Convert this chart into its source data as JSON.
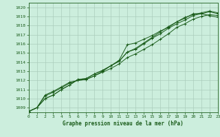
{
  "title": "Graphe pression niveau de la mer (hPa)",
  "bg_color": "#cceedd",
  "grid_color": "#aaccbb",
  "line_color": "#1a5c1a",
  "marker": "+",
  "xmin": 0,
  "xmax": 23,
  "ymin": 1008.5,
  "ymax": 1020.5,
  "yticks": [
    1009,
    1010,
    1011,
    1012,
    1013,
    1014,
    1015,
    1016,
    1017,
    1018,
    1019,
    1020
  ],
  "xticks": [
    0,
    1,
    2,
    3,
    4,
    5,
    6,
    7,
    8,
    9,
    10,
    11,
    12,
    13,
    14,
    15,
    16,
    17,
    18,
    19,
    20,
    21,
    22,
    23
  ],
  "lines": [
    [
      1008.6,
      1009.0,
      1010.4,
      1010.8,
      1011.3,
      1011.8,
      1012.0,
      1012.1,
      1012.5,
      1013.0,
      1013.6,
      1014.2,
      1015.9,
      1016.1,
      1016.5,
      1016.9,
      1017.4,
      1017.8,
      1018.4,
      1018.8,
      1019.3,
      1019.3,
      1019.1,
      1018.9
    ],
    [
      1008.6,
      1009.0,
      1010.0,
      1010.4,
      1011.0,
      1011.5,
      1012.1,
      1012.2,
      1012.7,
      1013.1,
      1013.6,
      1014.1,
      1015.1,
      1015.4,
      1016.0,
      1016.6,
      1017.1,
      1017.7,
      1018.2,
      1018.6,
      1019.1,
      1019.3,
      1019.5,
      1019.3
    ],
    [
      1008.6,
      1009.0,
      1010.0,
      1010.4,
      1011.0,
      1011.5,
      1012.1,
      1012.2,
      1012.7,
      1013.1,
      1013.6,
      1014.1,
      1015.1,
      1015.5,
      1016.1,
      1016.7,
      1017.3,
      1017.9,
      1018.4,
      1018.9,
      1019.2,
      1019.4,
      1019.6,
      1019.4
    ],
    [
      1008.6,
      1009.0,
      1010.3,
      1010.7,
      1011.2,
      1011.7,
      1012.0,
      1012.1,
      1012.5,
      1012.9,
      1013.3,
      1013.8,
      1014.5,
      1014.9,
      1015.4,
      1015.9,
      1016.5,
      1017.1,
      1017.8,
      1018.2,
      1018.7,
      1019.0,
      1019.2,
      1019.1
    ]
  ]
}
